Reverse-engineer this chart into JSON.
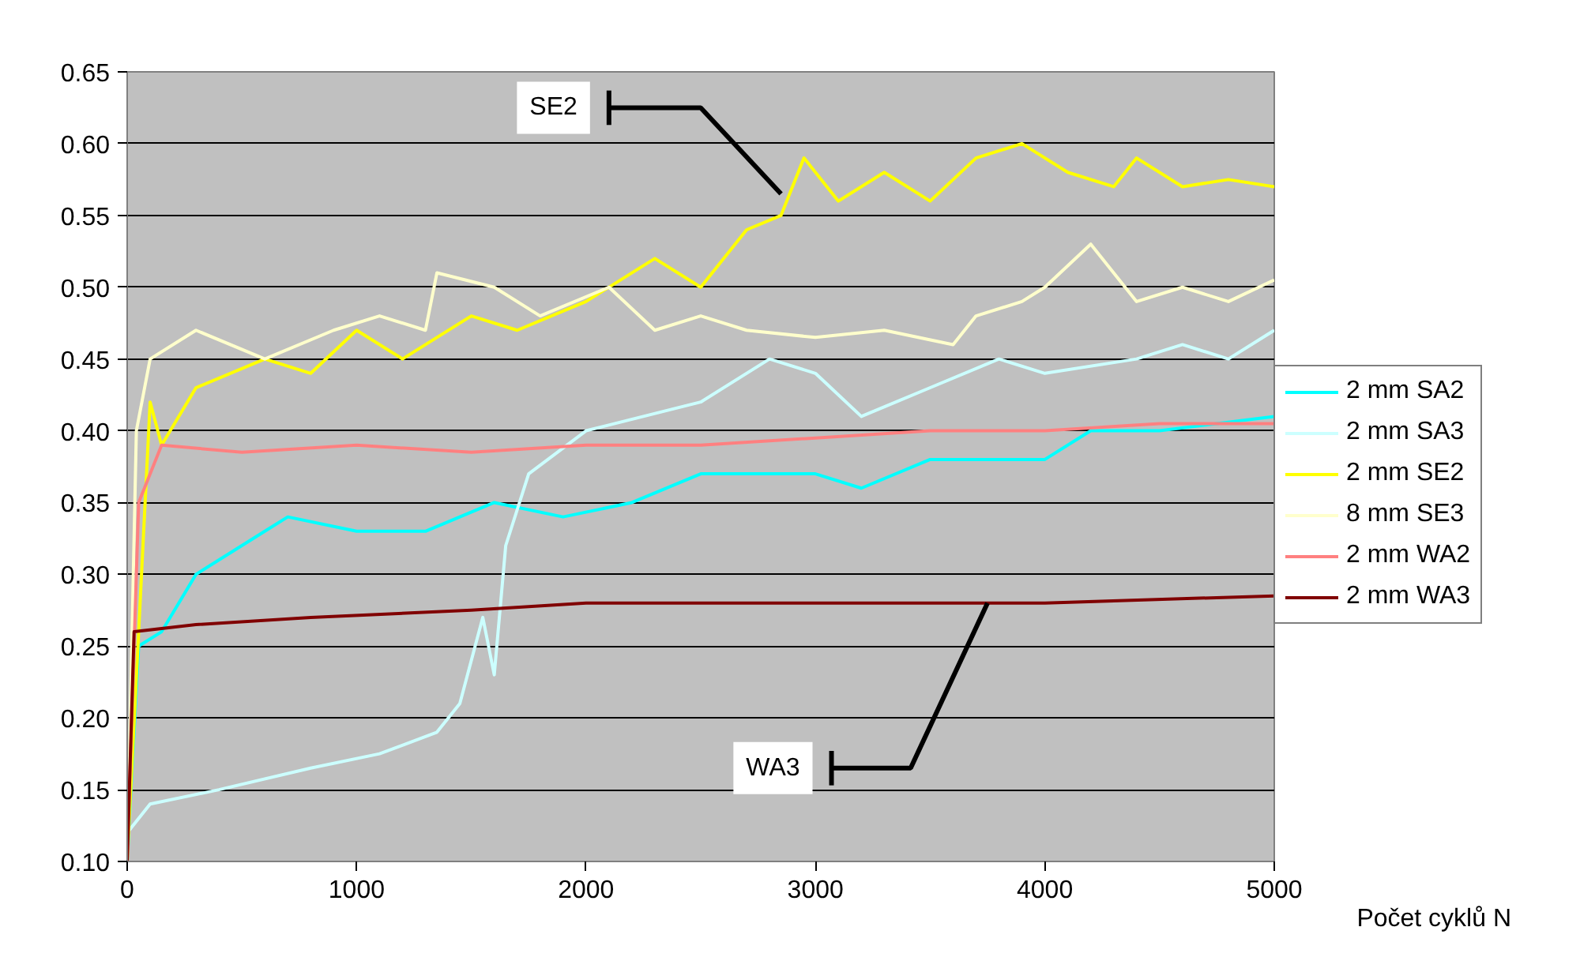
{
  "chart_data": {
    "type": "line",
    "xlabel": "Počet cyklů N",
    "xlim": [
      0,
      5000
    ],
    "xticks": [
      0,
      1000,
      2000,
      3000,
      4000,
      5000
    ],
    "ylim": [
      0.1,
      0.65
    ],
    "yticks": [
      {
        "value": 0.1,
        "label": "0.10"
      },
      {
        "value": 0.15,
        "label": "0.15"
      },
      {
        "value": 0.2,
        "label": "0.20"
      },
      {
        "value": 0.25,
        "label": "0.25"
      },
      {
        "value": 0.3,
        "label": "0.30"
      },
      {
        "value": 0.35,
        "label": "0.35"
      },
      {
        "value": 0.4,
        "label": "0.40"
      },
      {
        "value": 0.45,
        "label": "0.45"
      },
      {
        "value": 0.5,
        "label": "0.50"
      },
      {
        "value": 0.55,
        "label": "0.55"
      },
      {
        "value": 0.6,
        "label": "0.60"
      },
      {
        "value": 0.65,
        "label": "0.65"
      }
    ],
    "grid": "y",
    "legend": "right",
    "marker": "none",
    "line_style": "solid",
    "annotations": [
      {
        "text": "SE2",
        "x": 2850,
        "y": 0.565
      },
      {
        "text": "WA3",
        "x": 3750,
        "y": 0.28
      }
    ],
    "series": [
      {
        "name": "2 mm SA2",
        "color": "#00ffff",
        "x": [
          0,
          50,
          150,
          300,
          600,
          700,
          1000,
          1300,
          1600,
          1900,
          2200,
          2500,
          3000,
          3200,
          3500,
          4000,
          4200,
          4500,
          5000
        ],
        "values": [
          0.1,
          0.25,
          0.26,
          0.3,
          0.33,
          0.34,
          0.33,
          0.33,
          0.35,
          0.34,
          0.35,
          0.37,
          0.37,
          0.36,
          0.38,
          0.38,
          0.4,
          0.4,
          0.41
        ]
      },
      {
        "name": "2 mm SA3",
        "color": "#ccffff",
        "x": [
          0,
          100,
          400,
          800,
          1100,
          1350,
          1450,
          1550,
          1600,
          1650,
          1750,
          2000,
          2500,
          2800,
          3000,
          3200,
          3500,
          3800,
          4000,
          4400,
          4600,
          4800,
          5000
        ],
        "values": [
          0.12,
          0.14,
          0.15,
          0.165,
          0.175,
          0.19,
          0.21,
          0.27,
          0.23,
          0.32,
          0.37,
          0.4,
          0.42,
          0.45,
          0.44,
          0.41,
          0.43,
          0.45,
          0.44,
          0.45,
          0.46,
          0.45,
          0.47
        ]
      },
      {
        "name": "2 mm SE2",
        "color": "#ffff00",
        "x": [
          0,
          100,
          150,
          300,
          600,
          800,
          1000,
          1200,
          1500,
          1700,
          2000,
          2300,
          2500,
          2700,
          2850,
          2950,
          3100,
          3300,
          3500,
          3700,
          3900,
          4100,
          4300,
          4400,
          4600,
          4800,
          5000
        ],
        "values": [
          0.1,
          0.42,
          0.39,
          0.43,
          0.45,
          0.44,
          0.47,
          0.45,
          0.48,
          0.47,
          0.49,
          0.52,
          0.5,
          0.54,
          0.55,
          0.59,
          0.56,
          0.58,
          0.56,
          0.59,
          0.6,
          0.58,
          0.57,
          0.59,
          0.57,
          0.575,
          0.57
        ]
      },
      {
        "name": "8 mm SE3",
        "color": "#ffffcc",
        "x": [
          0,
          40,
          100,
          300,
          600,
          900,
          1100,
          1300,
          1350,
          1600,
          1800,
          2100,
          2300,
          2500,
          2700,
          3000,
          3300,
          3600,
          3700,
          3900,
          4000,
          4200,
          4400,
          4600,
          4800,
          5000
        ],
        "values": [
          0.1,
          0.4,
          0.45,
          0.47,
          0.45,
          0.47,
          0.48,
          0.47,
          0.51,
          0.5,
          0.48,
          0.5,
          0.47,
          0.48,
          0.47,
          0.465,
          0.47,
          0.46,
          0.48,
          0.49,
          0.5,
          0.53,
          0.49,
          0.5,
          0.49,
          0.505
        ]
      },
      {
        "name": "2 mm WA2",
        "color": "#ff8080",
        "x": [
          0,
          50,
          150,
          500,
          1000,
          1500,
          2000,
          2500,
          3000,
          3500,
          4000,
          4500,
          5000
        ],
        "values": [
          0.1,
          0.35,
          0.39,
          0.385,
          0.39,
          0.385,
          0.39,
          0.39,
          0.395,
          0.4,
          0.4,
          0.405,
          0.405
        ]
      },
      {
        "name": "2 mm WA3",
        "color": "#800000",
        "x": [
          0,
          30,
          300,
          800,
          1500,
          2000,
          3000,
          4000,
          5000
        ],
        "values": [
          0.1,
          0.26,
          0.265,
          0.27,
          0.275,
          0.28,
          0.28,
          0.28,
          0.285
        ]
      }
    ]
  }
}
